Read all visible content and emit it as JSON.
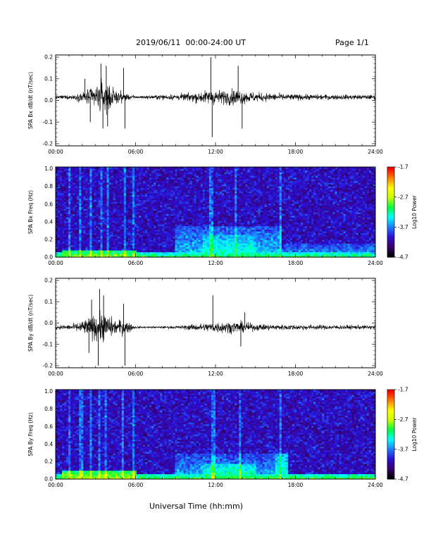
{
  "header": {
    "title": "2019/06/11  00:00-24:00 UT",
    "page": "Page 1/1"
  },
  "x_axis_label": "Universal Time (hh:mm)",
  "colorbar": {
    "ticks": [
      "-1.7",
      "-2.7",
      "-3.7",
      "-4.7"
    ],
    "tick_values": [
      -1.7,
      -2.7,
      -3.7,
      -4.7
    ],
    "title": "Log10 Power",
    "colors": [
      "#000000",
      "#3a006e",
      "#2a10d8",
      "#1f7cff",
      "#00ffff",
      "#00ff40",
      "#c8ff00",
      "#ffff00",
      "#ff8000",
      "#ff0000"
    ]
  },
  "chart_data": [
    {
      "type": "line",
      "ylabel": "SPA Bx dB/dt (nT/sec)",
      "xlabel": "",
      "x_ticks": [
        "00:00",
        "06:00",
        "12:00",
        "18:00",
        "24:00"
      ],
      "x_tick_hours": [
        0,
        6,
        12,
        18,
        24
      ],
      "xlim_hours": [
        0,
        24
      ],
      "ylim": [
        -0.21,
        0.21
      ],
      "y_ticks": [
        "0.2",
        "0.1",
        "0.0",
        "-0.1",
        "-0.2"
      ],
      "y_tick_values": [
        0.2,
        0.1,
        0.0,
        -0.1,
        -0.2
      ],
      "baseline": 0.015,
      "envelope_hours": [
        0,
        1,
        1.5,
        2,
        2.5,
        3,
        3.5,
        4,
        4.5,
        5,
        5.5,
        6,
        7,
        8,
        9,
        10,
        11,
        11.5,
        12,
        12.5,
        13,
        13.5,
        14,
        15,
        16,
        17,
        18,
        19,
        20,
        21,
        22,
        23,
        24
      ],
      "envelope_amp": [
        0.012,
        0.015,
        0.02,
        0.04,
        0.06,
        0.09,
        0.12,
        0.1,
        0.05,
        0.04,
        0.02,
        0.01,
        0.012,
        0.018,
        0.022,
        0.03,
        0.045,
        0.05,
        0.055,
        0.05,
        0.055,
        0.06,
        0.05,
        0.035,
        0.03,
        0.025,
        0.022,
        0.02,
        0.02,
        0.018,
        0.018,
        0.017,
        0.016
      ],
      "spikes": [
        [
          3.4,
          0.17
        ],
        [
          3.55,
          -0.13
        ],
        [
          3.8,
          0.16
        ],
        [
          3.9,
          -0.12
        ],
        [
          5.1,
          0.15
        ],
        [
          5.2,
          -0.13
        ],
        [
          11.65,
          0.2
        ],
        [
          11.75,
          -0.17
        ],
        [
          13.7,
          0.16
        ],
        [
          14.0,
          -0.13
        ],
        [
          2.2,
          0.1
        ],
        [
          2.6,
          -0.1
        ]
      ]
    },
    {
      "type": "heatmap",
      "ylabel": "SPA Bx Freq (Hz)",
      "x_ticks": [
        "00:00",
        "06:00",
        "12:00",
        "18:00",
        "24:00"
      ],
      "x_tick_hours": [
        0,
        6,
        12,
        18,
        24
      ],
      "xlim_hours": [
        0,
        24
      ],
      "ylim": [
        0.0,
        1.02
      ],
      "y_ticks": [
        "1.0",
        "0.8",
        "0.6",
        "0.4",
        "0.2",
        "0.0"
      ],
      "y_tick_values": [
        1.0,
        0.8,
        0.6,
        0.4,
        0.2,
        0.0
      ],
      "z_range": [
        -4.7,
        -1.7
      ],
      "background_level": -4.1,
      "bands": [
        {
          "from_hour": 0,
          "to_hour": 24,
          "freq_max": 0.05,
          "level": -3.2
        },
        {
          "from_hour": 0.5,
          "to_hour": 6,
          "freq_max": 0.08,
          "level": -3.0
        },
        {
          "from_hour": 9,
          "to_hour": 17,
          "freq_max": 0.35,
          "level": -3.65
        },
        {
          "from_hour": 11,
          "to_hour": 15,
          "freq_max": 0.25,
          "level": -3.4
        },
        {
          "from_hour": 17,
          "to_hour": 24,
          "freq_max": 0.15,
          "level": -3.7
        }
      ],
      "streaks_hours": [
        1.0,
        1.8,
        2.6,
        3.4,
        3.9,
        5.2,
        5.8,
        11.7,
        13.5,
        16.9
      ]
    },
    {
      "type": "line",
      "ylabel": "SPA By dB/dt (nT/sec)",
      "xlabel": "",
      "x_ticks": [
        "00:00",
        "06:00",
        "12:00",
        "18:00",
        "24:00"
      ],
      "x_tick_hours": [
        0,
        6,
        12,
        18,
        24
      ],
      "xlim_hours": [
        0,
        24
      ],
      "ylim": [
        -0.21,
        0.21
      ],
      "y_ticks": [
        "0.2",
        "0.1",
        "0.0",
        "-0.1",
        "-0.2"
      ],
      "y_tick_values": [
        0.2,
        0.1,
        0.0,
        -0.1,
        -0.2
      ],
      "baseline": -0.02,
      "envelope_hours": [
        0,
        1,
        1.5,
        2,
        2.5,
        3,
        3.5,
        4,
        4.5,
        5,
        5.5,
        6,
        7,
        8,
        9,
        10,
        11,
        11.5,
        12,
        12.5,
        13,
        13.5,
        14,
        15,
        16,
        17,
        18,
        19,
        20,
        21,
        22,
        23,
        24
      ],
      "envelope_amp": [
        0.015,
        0.02,
        0.03,
        0.05,
        0.07,
        0.1,
        0.11,
        0.09,
        0.05,
        0.06,
        0.04,
        0.008,
        0.006,
        0.008,
        0.01,
        0.02,
        0.03,
        0.035,
        0.04,
        0.045,
        0.04,
        0.045,
        0.04,
        0.025,
        0.022,
        0.02,
        0.02,
        0.018,
        0.018,
        0.016,
        0.016,
        0.015,
        0.015
      ],
      "spikes": [
        [
          3.3,
          0.16
        ],
        [
          3.2,
          -0.2
        ],
        [
          3.6,
          0.13
        ],
        [
          2.7,
          0.11
        ],
        [
          2.5,
          -0.14
        ],
        [
          5.1,
          0.09
        ],
        [
          5.2,
          -0.2
        ],
        [
          11.8,
          0.13
        ],
        [
          13.9,
          -0.11
        ],
        [
          14.2,
          0.05
        ]
      ]
    },
    {
      "type": "heatmap",
      "ylabel": "SPA By Freq (Hz)",
      "x_ticks": [
        "00:00",
        "06:00",
        "12:00",
        "18:00",
        "24:00"
      ],
      "x_tick_hours": [
        0,
        6,
        12,
        18,
        24
      ],
      "xlim_hours": [
        0,
        24
      ],
      "ylim": [
        0.0,
        1.02
      ],
      "y_ticks": [
        "1.0",
        "0.8",
        "0.6",
        "0.4",
        "0.2",
        "0.0"
      ],
      "y_tick_values": [
        1.0,
        0.8,
        0.6,
        0.4,
        0.2,
        0.0
      ],
      "z_range": [
        -4.7,
        -1.7
      ],
      "background_level": -4.1,
      "bands": [
        {
          "from_hour": 0,
          "to_hour": 24,
          "freq_max": 0.05,
          "level": -3.1
        },
        {
          "from_hour": 0.5,
          "to_hour": 6,
          "freq_max": 0.1,
          "level": -2.9
        },
        {
          "from_hour": 9,
          "to_hour": 17,
          "freq_max": 0.3,
          "level": -3.7
        },
        {
          "from_hour": 11,
          "to_hour": 15,
          "freq_max": 0.18,
          "level": -3.3
        },
        {
          "from_hour": 16.5,
          "to_hour": 17.5,
          "freq_max": 0.3,
          "level": -3.4
        }
      ],
      "streaks_hours": [
        1.0,
        1.9,
        2.6,
        3.3,
        3.8,
        5.0,
        5.8,
        11.8,
        13.8,
        16.9
      ]
    }
  ]
}
